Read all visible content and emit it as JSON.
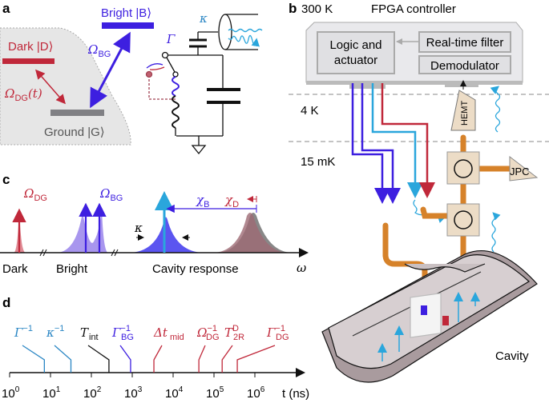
{
  "colors": {
    "red": "#c0283a",
    "purple": "#3d1fe0",
    "cyan": "#2aa6dc",
    "gray": "#808084",
    "copper": "#d6822a",
    "beige": "#ecdcc6",
    "black": "#111111"
  },
  "panel_a": {
    "label": "a",
    "bright": "Bright |B⟩",
    "dark": "Dark |D⟩",
    "ground": "Ground |G⟩",
    "omega_bg": "Ω",
    "omega_bg_sub": "BG",
    "omega_dg": "Ω",
    "omega_dg_sub": "DG",
    "omega_dg_suffix": "(t)",
    "kappa": "κ",
    "gamma": "Γ"
  },
  "panel_b": {
    "label": "b",
    "temp_300k": "300 K",
    "title": "FPGA controller",
    "logic": [
      "Logic and",
      "actuator"
    ],
    "filter": "Real-time filter",
    "demod": "Demodulator",
    "temp_4k": "4 K",
    "temp_15mk": "15 mK",
    "hemt": "HEMT",
    "jpc": "JPC",
    "cavity": "Cavity"
  },
  "panel_c": {
    "label": "c",
    "omega_dg": "Ω",
    "omega_dg_sub": "DG",
    "omega_bg": "Ω",
    "omega_bg_sub": "BG",
    "chi_b": "χ",
    "chi_b_sub": "B",
    "chi_d": "χ",
    "chi_d_sub": "D",
    "kappa": "κ",
    "dark": "Dark",
    "bright": "Bright",
    "cavity": "Cavity response",
    "omega": "ω"
  },
  "panel_d": {
    "label": "d",
    "axis_label": "t (ns)",
    "ticks": [
      "10",
      "10",
      "10",
      "10",
      "10",
      "10",
      "10"
    ],
    "tick_exps": [
      "0",
      "1",
      "2",
      "3",
      "4",
      "5",
      "6"
    ],
    "markers": [
      {
        "name": "Γ",
        "sup": "−1",
        "sub": "",
        "log10_t": 0.85,
        "color": "#2a86c4"
      },
      {
        "name": "κ",
        "sup": "−1",
        "sub": "",
        "log10_t": 1.5,
        "color": "#2a86c4"
      },
      {
        "name": "T",
        "sup": "",
        "sub": "int",
        "log10_t": 2.43,
        "color": "#111111"
      },
      {
        "name": "Γ",
        "sup": "−1",
        "sub": "BG",
        "log10_t": 2.96,
        "color": "#3d1fe0"
      },
      {
        "name": "Δt",
        "sup": "",
        "sub": "mid",
        "log10_t": 3.53,
        "color": "#c0283a"
      },
      {
        "name": "Ω",
        "sup": "−1",
        "sub": "DG",
        "log10_t": 4.63,
        "color": "#c0283a"
      },
      {
        "name": "T",
        "sup": "D",
        "sub": "2R",
        "log10_t": 5.2,
        "color": "#c0283a"
      },
      {
        "name": "Γ",
        "sup": "−1",
        "sub": "DG",
        "log10_t": 5.57,
        "color": "#c0283a"
      }
    ]
  }
}
